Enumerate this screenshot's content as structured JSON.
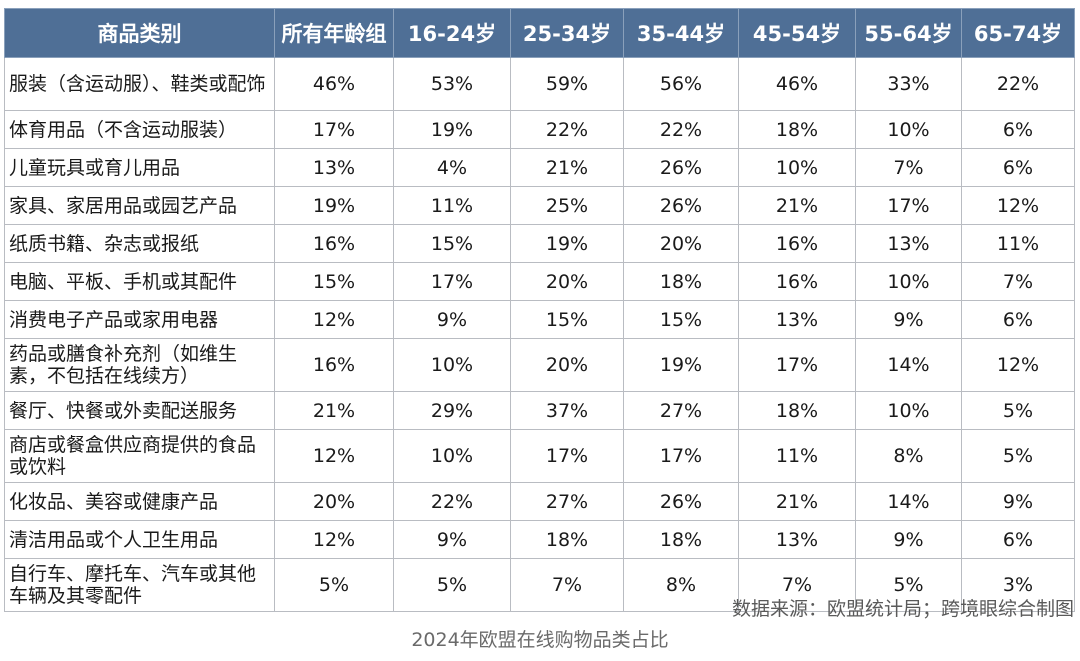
{
  "chart_data": {
    "type": "table",
    "title": "2024年欧盟在线购物品类占比",
    "source": "数据来源：欧盟统计局；跨境眼综合制图",
    "columns": [
      "商品类别",
      "所有年龄组",
      "16-24岁",
      "25-34岁",
      "35-44岁",
      "45-54岁",
      "55-64岁",
      "65-74岁"
    ],
    "rows": [
      {
        "category": "服装（含运动服）、鞋类或配饰",
        "values": [
          "46%",
          "53%",
          "59%",
          "56%",
          "46%",
          "33%",
          "22%"
        ]
      },
      {
        "category": "体育用品（不含运动服装）",
        "values": [
          "17%",
          "19%",
          "22%",
          "22%",
          "18%",
          "10%",
          "6%"
        ]
      },
      {
        "category": "儿童玩具或育儿用品",
        "values": [
          "13%",
          "4%",
          "21%",
          "26%",
          "10%",
          "7%",
          "6%"
        ]
      },
      {
        "category": "家具、家居用品或园艺产品",
        "values": [
          "19%",
          "11%",
          "25%",
          "26%",
          "21%",
          "17%",
          "12%"
        ]
      },
      {
        "category": "纸质书籍、杂志或报纸",
        "values": [
          "16%",
          "15%",
          "19%",
          "20%",
          "16%",
          "13%",
          "11%"
        ]
      },
      {
        "category": "电脑、平板、手机或其配件",
        "values": [
          "15%",
          "17%",
          "20%",
          "18%",
          "16%",
          "10%",
          "7%"
        ]
      },
      {
        "category": "消费电子产品或家用电器",
        "values": [
          "12%",
          "9%",
          "15%",
          "15%",
          "13%",
          "9%",
          "6%"
        ]
      },
      {
        "category": "药品或膳食补充剂（如维生素，不包括在线续方）",
        "values": [
          "16%",
          "10%",
          "20%",
          "19%",
          "17%",
          "14%",
          "12%"
        ]
      },
      {
        "category": "餐厅、快餐或外卖配送服务",
        "values": [
          "21%",
          "29%",
          "37%",
          "27%",
          "18%",
          "10%",
          "5%"
        ]
      },
      {
        "category": "商店或餐盒供应商提供的食品或饮料",
        "values": [
          "12%",
          "10%",
          "17%",
          "17%",
          "11%",
          "8%",
          "5%"
        ]
      },
      {
        "category": "化妆品、美容或健康产品",
        "values": [
          "20%",
          "22%",
          "27%",
          "26%",
          "21%",
          "14%",
          "9%"
        ]
      },
      {
        "category": "清洁用品或个人卫生用品",
        "values": [
          "12%",
          "9%",
          "18%",
          "18%",
          "13%",
          "9%",
          "6%"
        ]
      },
      {
        "category": "自行车、摩托车、汽车或其他车辆及其零配件",
        "values": [
          "5%",
          "5%",
          "7%",
          "8%",
          "7%",
          "5%",
          "3%"
        ]
      }
    ],
    "colors": {
      "header_bg": "#4f6f96",
      "header_text": "#ffffff",
      "grid": "#b9bcc2"
    }
  }
}
